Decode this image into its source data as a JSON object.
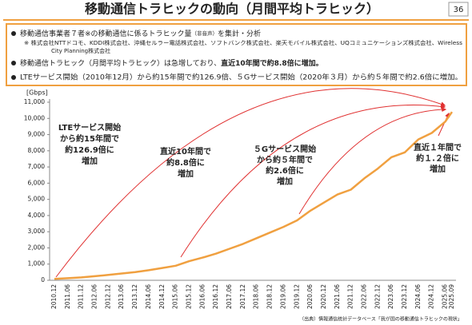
{
  "header": {
    "title": "移動通信トラヒックの動向（月間平均トラヒック）",
    "page": "36"
  },
  "summary": {
    "bullet1": [
      "移動通信事業者７者※の移動通信に係るトラヒック量",
      "（非音声）",
      "を集計・分析"
    ],
    "note": [
      "※ 株式会社NTTドコモ、KDDI株式会社、沖縄セルラー電話株式会社、ソフトバンク株式会社、楽天モバイル株式会社、UQコミュニケーションズ株式会社、Wireless",
      "City Planning株式会社"
    ],
    "bullet2": [
      "移動通信トラヒック（月間平均トラヒック）は急増しており、",
      "直近10年間で約8.8倍に増加。"
    ],
    "bullet3": "LTEサービス開始（2010年12月）から約15年間で約126.9倍、５Gサービス開始（2020年３月）から約５年間で約2.6倍に増加。"
  },
  "chart_data": {
    "type": "line",
    "y_label": "[Gbps]",
    "categories": [
      "2010.12",
      "2011.06",
      "2011.12",
      "2012.06",
      "2012.12",
      "2013.06",
      "2013.12",
      "2014.06",
      "2014.12",
      "2015.06",
      "2015.12",
      "2016.06",
      "2016.12",
      "2017.06",
      "2017.12",
      "2018.06",
      "2018.12",
      "2019.06",
      "2019.12",
      "2020.06",
      "2020.12",
      "2021.06",
      "2021.12",
      "2022.06",
      "2022.12",
      "2023.06",
      "2023.12",
      "2024.06",
      "2024.12",
      "2025.06",
      "2025.09"
    ],
    "values": [
      82,
      130,
      180,
      250,
      330,
      420,
      510,
      620,
      760,
      900,
      1180,
      1400,
      1650,
      1950,
      2250,
      2600,
      2950,
      3300,
      3700,
      4300,
      4800,
      5300,
      5600,
      6300,
      6900,
      7600,
      7900,
      8700,
      9100,
      9800,
      10400
    ],
    "color": "#f0a040",
    "ylim": [
      0,
      11000
    ],
    "yticks": [
      0,
      {
        "value": 1000,
        "label": "1,000"
      },
      {
        "value": 2000,
        "label": "2,000"
      },
      {
        "value": 3000,
        "label": "3,000"
      },
      {
        "value": 4000,
        "label": "4,000"
      },
      {
        "value": 5000,
        "label": "5,000"
      },
      {
        "value": 6000,
        "label": "6,000"
      },
      {
        "value": 7000,
        "label": "7,000"
      },
      {
        "value": 8000,
        "label": "8,000"
      },
      {
        "value": 9000,
        "label": "9,000"
      },
      {
        "value": 10000,
        "label": "10,000"
      },
      {
        "value": 11000,
        "label": "11,000"
      }
    ],
    "grid": false,
    "annotations": [
      [
        "LTEサービス開始",
        "から約15年間で",
        "約126.9倍に",
        "増加"
      ],
      [
        "直近10年間で",
        "約8.8倍に",
        "増加"
      ],
      [
        "５Gサービス開始",
        "から約５年間で",
        "約2.6倍に",
        "増加"
      ],
      [
        "直近１年間で",
        "約１.２倍に",
        "増加"
      ]
    ]
  },
  "source": "（出典）情報通信統計データベース「我が国の移動通信トラヒックの現状」"
}
